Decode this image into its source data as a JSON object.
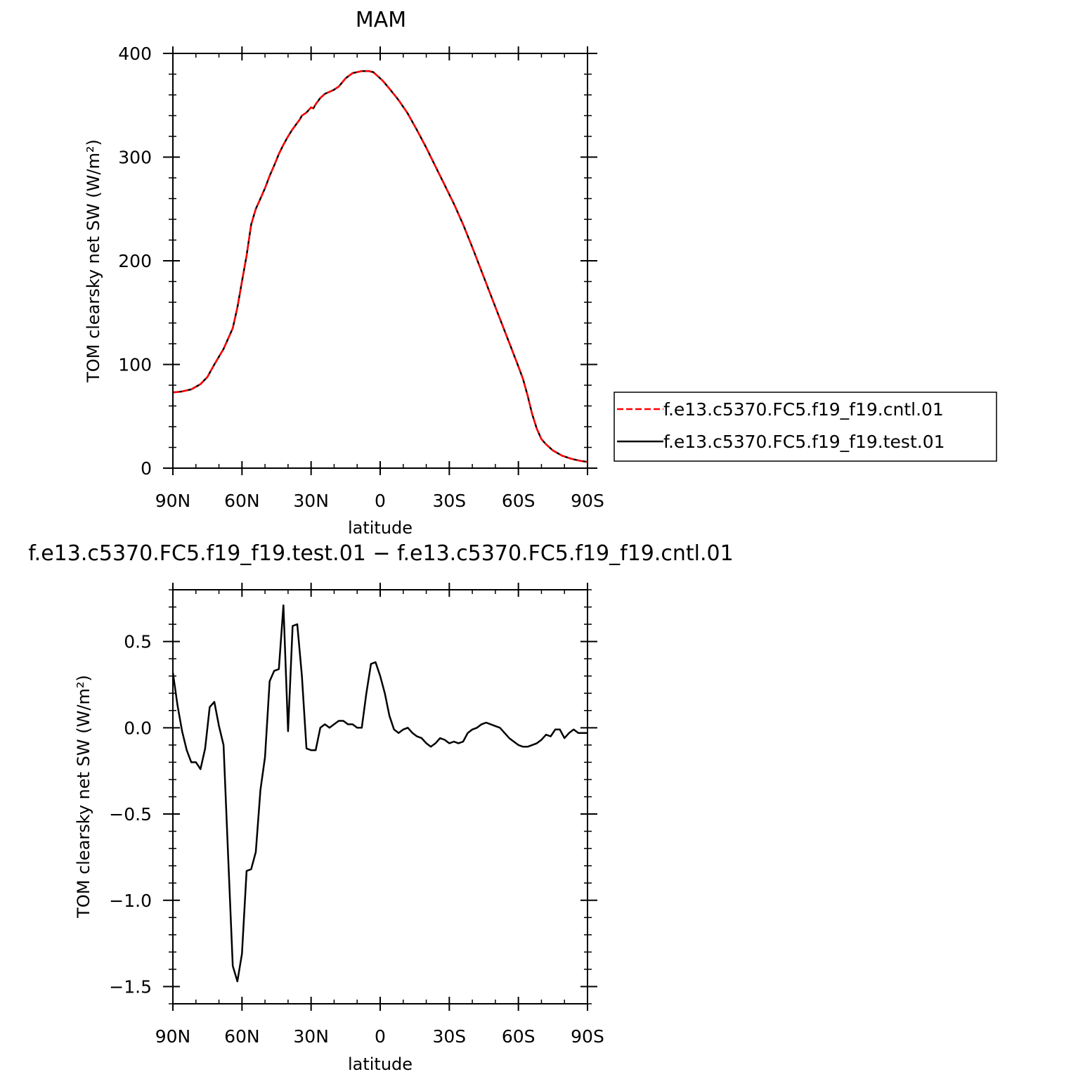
{
  "chart_data": [
    {
      "type": "line",
      "title": "MAM",
      "xlabel": "latitude",
      "ylabel": "TOM clearsky net SW (W/m²)",
      "xlim": [
        90,
        -90
      ],
      "ylim": [
        0,
        400
      ],
      "xticks": [
        {
          "value": 90,
          "label": "90N"
        },
        {
          "value": 60,
          "label": "60N"
        },
        {
          "value": 30,
          "label": "30N"
        },
        {
          "value": 0,
          "label": "0"
        },
        {
          "value": -30,
          "label": "30S"
        },
        {
          "value": -60,
          "label": "60S"
        },
        {
          "value": -90,
          "label": "90S"
        }
      ],
      "yticks": [
        {
          "value": 0,
          "label": "0"
        },
        {
          "value": 100,
          "label": "100"
        },
        {
          "value": 200,
          "label": "200"
        },
        {
          "value": 300,
          "label": "300"
        },
        {
          "value": 400,
          "label": "400"
        }
      ],
      "x": [
        90,
        86,
        82,
        78,
        75,
        72,
        68,
        66,
        64,
        62,
        60,
        58,
        56,
        54,
        52,
        50,
        48,
        46,
        44,
        42,
        40,
        38,
        36,
        35,
        34,
        32,
        30,
        29,
        28,
        26,
        24,
        22,
        20,
        18,
        15,
        12,
        10,
        8,
        5,
        3,
        1,
        -1,
        -4,
        -8,
        -12,
        -16,
        -20,
        -24,
        -28,
        -32,
        -36,
        -40,
        -44,
        -48,
        -52,
        -56,
        -60,
        -62,
        -64,
        -66,
        -68,
        -70,
        -72,
        -75,
        -79,
        -83,
        -87,
        -90
      ],
      "series": [
        {
          "name": "f.e13.c5370.FC5.f19_f19.cntl.01",
          "color": "#ff0000",
          "dash": true,
          "values": [
            73,
            74,
            76,
            81,
            88,
            100,
            115,
            125,
            135,
            155,
            180,
            205,
            235,
            250,
            260,
            270,
            282,
            292,
            303,
            312,
            320,
            327,
            333,
            336,
            340,
            343,
            348,
            347,
            351,
            357,
            361,
            363,
            365,
            368,
            376,
            381,
            382,
            383,
            383,
            382,
            378,
            374,
            366,
            355,
            342,
            326,
            309,
            291,
            273,
            255,
            235,
            213,
            190,
            167,
            144,
            121,
            98,
            86,
            70,
            52,
            38,
            28,
            23,
            17,
            12,
            9,
            7,
            6
          ]
        },
        {
          "name": "f.e13.c5370.FC5.f19_f19.test.01",
          "color": "#000000",
          "dash": false,
          "values": [
            73,
            74,
            76,
            81,
            88,
            100,
            115,
            125,
            135,
            155,
            180,
            205,
            235,
            250,
            260,
            270,
            282,
            292,
            303,
            312,
            320,
            327,
            333,
            336,
            340,
            343,
            348,
            347,
            351,
            357,
            361,
            363,
            365,
            368,
            376,
            381,
            382,
            383,
            383,
            382,
            378,
            374,
            366,
            355,
            342,
            326,
            309,
            291,
            273,
            255,
            235,
            213,
            190,
            167,
            144,
            121,
            98,
            86,
            70,
            52,
            38,
            28,
            23,
            17,
            12,
            9,
            7,
            6
          ]
        }
      ],
      "legend": "outside-right",
      "grid": false
    },
    {
      "type": "line",
      "title": "f.e13.c5370.FC5.f19_f19.test.01 − f.e13.c5370.FC5.f19_f19.cntl.01",
      "xlabel": "latitude",
      "ylabel": "TOM clearsky net SW (W/m²)",
      "xlim": [
        90,
        -90
      ],
      "ylim": [
        -1.6,
        0.8
      ],
      "xticks": [
        {
          "value": 90,
          "label": "90N"
        },
        {
          "value": 60,
          "label": "60N"
        },
        {
          "value": 30,
          "label": "30N"
        },
        {
          "value": 0,
          "label": "0"
        },
        {
          "value": -30,
          "label": "30S"
        },
        {
          "value": -60,
          "label": "60S"
        },
        {
          "value": -90,
          "label": "90S"
        }
      ],
      "yticks": [
        {
          "value": 0.5,
          "label": "0.5"
        },
        {
          "value": 0.0,
          "label": "0.0"
        },
        {
          "value": -0.5,
          "label": "−0.5"
        },
        {
          "value": -1.0,
          "label": "−1.0"
        },
        {
          "value": -1.5,
          "label": "−1.5"
        }
      ],
      "x": [
        90,
        88,
        86,
        84,
        82,
        80,
        78,
        76,
        74,
        72,
        70,
        68,
        66,
        64,
        62,
        60,
        58,
        56,
        54,
        52,
        50,
        48,
        46,
        44,
        42,
        40,
        38,
        36,
        34,
        32,
        30,
        28,
        26,
        24,
        22,
        20,
        18,
        16,
        14,
        12,
        10,
        8,
        6,
        4,
        2,
        0,
        -2,
        -4,
        -6,
        -8,
        -10,
        -12,
        -14,
        -16,
        -18,
        -20,
        -22,
        -24,
        -26,
        -28,
        -30,
        -32,
        -34,
        -36,
        -38,
        -40,
        -42,
        -44,
        -46,
        -48,
        -50,
        -52,
        -54,
        -56,
        -58,
        -60,
        -62,
        -64,
        -66,
        -68,
        -70,
        -72,
        -74,
        -76,
        -78,
        -80,
        -82,
        -84,
        -86,
        -88,
        -90
      ],
      "series": [
        {
          "name": "f.e13.c5370.FC5.f19_f19.test.01 − f.e13.c5370.FC5.f19_f19.cntl.01",
          "color": "#000000",
          "dash": false,
          "values": [
            0.32,
            0.13,
            -0.02,
            -0.13,
            -0.2,
            -0.2,
            -0.24,
            -0.12,
            0.12,
            0.15,
            0.01,
            -0.1,
            -0.75,
            -1.38,
            -1.47,
            -1.31,
            -0.83,
            -0.82,
            -0.72,
            -0.36,
            -0.17,
            0.27,
            0.33,
            0.34,
            0.71,
            -0.02,
            0.59,
            0.6,
            0.3,
            -0.12,
            -0.13,
            -0.13,
            0.0,
            0.02,
            0.0,
            0.02,
            0.04,
            0.04,
            0.02,
            0.02,
            0.0,
            0.0,
            0.2,
            0.37,
            0.38,
            0.3,
            0.2,
            0.07,
            -0.01,
            -0.03,
            -0.01,
            0.0,
            -0.03,
            -0.05,
            -0.06,
            -0.09,
            -0.11,
            -0.09,
            -0.06,
            -0.07,
            -0.09,
            -0.08,
            -0.09,
            -0.08,
            -0.03,
            -0.01,
            0.0,
            0.02,
            0.03,
            0.02,
            0.01,
            0.0,
            -0.03,
            -0.06,
            -0.08,
            -0.1,
            -0.11,
            -0.11,
            -0.1,
            -0.09,
            -0.07,
            -0.04,
            -0.05,
            -0.01,
            -0.01,
            -0.06,
            -0.03,
            -0.01,
            -0.03,
            -0.03,
            -0.03
          ]
        }
      ],
      "grid": false
    }
  ]
}
